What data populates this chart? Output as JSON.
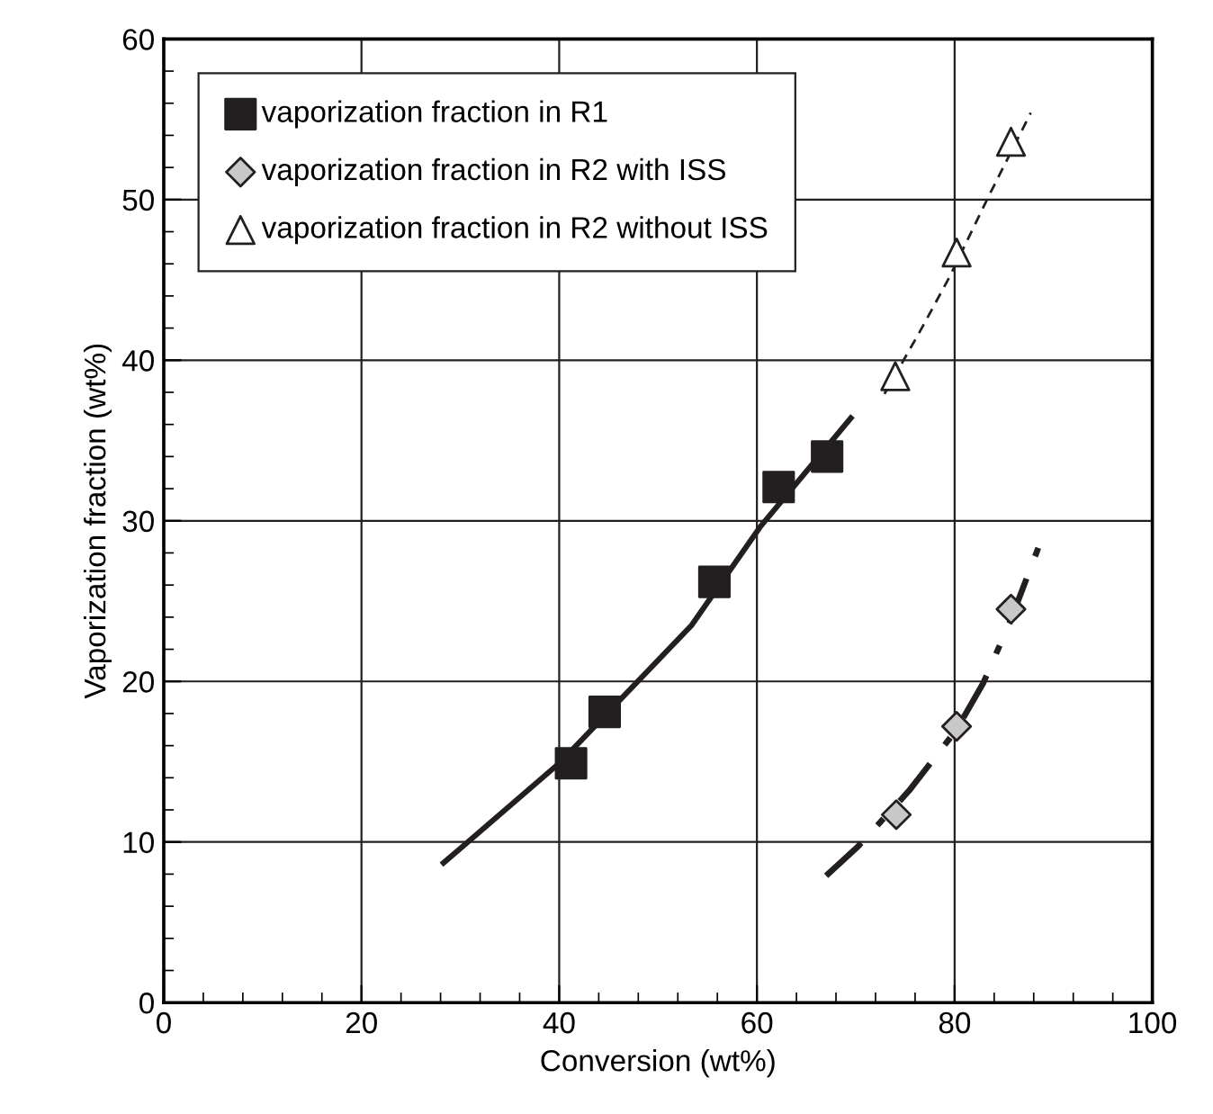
{
  "chart_data": {
    "type": "scatter",
    "xlabel": "Conversion (wt%)",
    "ylabel": "Vaporization fraction (wt%)",
    "xlim": [
      0,
      100
    ],
    "ylim": [
      0,
      60
    ],
    "xticks": [
      0,
      20,
      40,
      60,
      80,
      100
    ],
    "yticks": [
      0,
      10,
      20,
      30,
      40,
      50,
      60
    ],
    "grid": true,
    "legend": "top left",
    "series": [
      {
        "name": "vaporization fraction in R1",
        "color": "#231f20",
        "marker": "square",
        "x": [
          41.2,
          44.6,
          55.7,
          62.2,
          67.1
        ],
        "values": [
          14.9,
          18.1,
          26.2,
          32.1,
          34.0
        ]
      },
      {
        "name": "vaporization fraction in R2 with ISS",
        "color": "#c8c8c8",
        "marker": "diamond",
        "x": [
          74.1,
          80.2,
          85.7
        ],
        "values": [
          11.7,
          17.2,
          24.5
        ]
      },
      {
        "name": "vaporization fraction in R2 without ISS",
        "color": "#ffffff",
        "marker": "triangle",
        "x": [
          74.0,
          80.2,
          85.7
        ],
        "values": [
          39.0,
          46.7,
          53.6
        ]
      },
      {
        "type": "line",
        "color": "#231f20",
        "line_style": "solid",
        "x": [
          28.3,
          40.0,
          53.4,
          60.3,
          69.5
        ],
        "values": [
          8.7,
          14.9,
          23.5,
          29.6,
          36.4
        ]
      },
      {
        "type": "line",
        "color": "#231f20",
        "line_style": "dashdot",
        "x": [
          67.0,
          70.2,
          75.4,
          80.2,
          82.9,
          85.6,
          88.7
        ],
        "values": [
          7.9,
          9.7,
          13.2,
          17.0,
          19.9,
          23.7,
          28.7
        ]
      },
      {
        "type": "line",
        "color": "#231f20",
        "line_style": "dashed",
        "x": [
          72.9,
          76.5,
          79.5,
          83.6,
          87.7
        ],
        "values": [
          37.9,
          41.8,
          45.2,
          50.4,
          55.4
        ]
      }
    ]
  }
}
